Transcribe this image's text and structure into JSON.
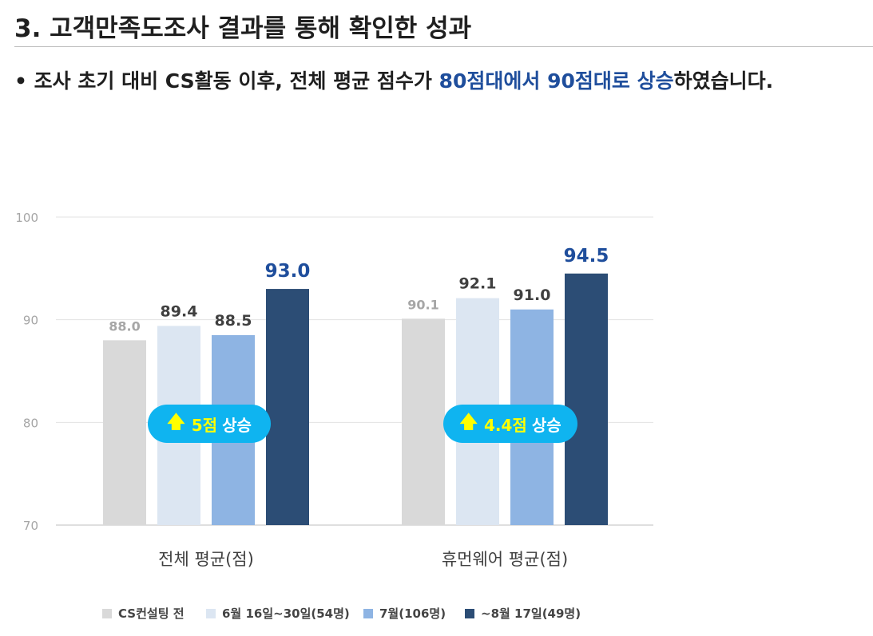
{
  "page": {
    "title": "3. 고객만족도조사 결과를 통해 확인한 성과",
    "subtitle_prefix": "• 조사 초기 대비 CS활동 이후, 전체 평균 점수가 ",
    "subtitle_highlight": "80점대에서 90점대로 상승",
    "subtitle_suffix": "하였습니다."
  },
  "chart_data": {
    "type": "bar",
    "categories": [
      "전체 평균(점)",
      "휴먼웨어 평균(점)"
    ],
    "series": [
      {
        "name": "CS컨설팅 전",
        "values": [
          88.0,
          90.1
        ],
        "color": "#d9d9d9",
        "label_color": "#a6a6a6"
      },
      {
        "name": "6월 16일~30일(54명)",
        "values": [
          89.4,
          92.1
        ],
        "color": "#dce6f2",
        "label_color": "#404040"
      },
      {
        "name": "7월(106명)",
        "values": [
          88.5,
          91.0
        ],
        "color": "#8eb4e3",
        "label_color": "#404040"
      },
      {
        "name": "~8월 17일(49명)",
        "values": [
          93.0,
          94.5
        ],
        "color": "#2c4d75",
        "label_color": "#1f4e9c"
      }
    ],
    "ylim": [
      70,
      100
    ],
    "yticks": [
      70,
      80,
      90,
      100
    ],
    "grid": true,
    "legend": "bottom",
    "value_labels": [
      [
        "88.0",
        "89.4",
        "88.5",
        "93.0"
      ],
      [
        "90.1",
        "92.1",
        "91.0",
        "94.5"
      ]
    ],
    "annotations": [
      {
        "arrow": "🡅",
        "delta": "5점",
        "text": "상승"
      },
      {
        "arrow": "🡅",
        "delta": "4.4점",
        "text": "상승"
      }
    ]
  }
}
